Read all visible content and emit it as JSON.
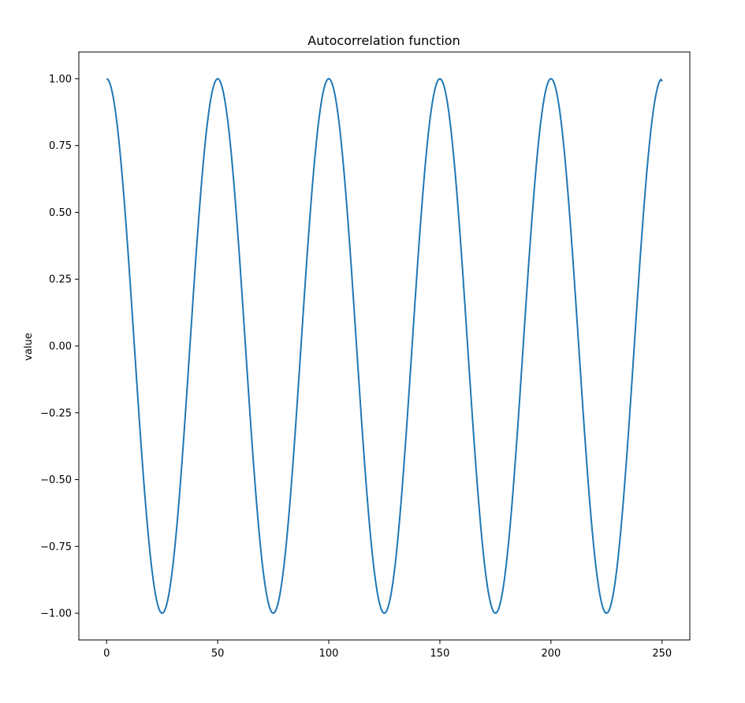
{
  "chart_data": {
    "type": "line",
    "title": "Autocorrelation function",
    "xlabel": "",
    "ylabel": "value",
    "xlim": [
      -12.5,
      262.5
    ],
    "ylim": [
      -1.1,
      1.1
    ],
    "xticks": [
      0,
      50,
      100,
      150,
      200,
      250
    ],
    "xtick_labels": [
      "0",
      "50",
      "100",
      "150",
      "200",
      "250"
    ],
    "yticks": [
      1.0,
      0.75,
      0.5,
      0.25,
      0.0,
      -0.25,
      -0.5,
      -0.75,
      -1.0
    ],
    "ytick_labels": [
      "1.00",
      "0.75",
      "0.50",
      "0.25",
      "0.00",
      "−0.25",
      "−0.50",
      "−0.75",
      "−1.00"
    ],
    "grid": false,
    "series": [
      {
        "color": "#1f77b4",
        "period": 50,
        "x": [
          0,
          5,
          10,
          15,
          20,
          25,
          30,
          35,
          40,
          45,
          50,
          55,
          60,
          65,
          70,
          75,
          80,
          85,
          90,
          95,
          100,
          105,
          110,
          115,
          120,
          125,
          130,
          135,
          140,
          145,
          150,
          155,
          160,
          165,
          170,
          175,
          180,
          185,
          190,
          195,
          200,
          205,
          210,
          215,
          220,
          225,
          230,
          235,
          240,
          245,
          250
        ],
        "y": [
          1.0,
          0.81,
          0.31,
          -0.31,
          -0.81,
          -1.0,
          -0.81,
          -0.31,
          0.31,
          0.81,
          1.0,
          0.81,
          0.31,
          -0.31,
          -0.81,
          -1.0,
          -0.81,
          -0.31,
          0.31,
          0.81,
          1.0,
          0.81,
          0.31,
          -0.31,
          -0.81,
          -1.0,
          -0.81,
          -0.31,
          0.31,
          0.81,
          1.0,
          0.81,
          0.31,
          -0.31,
          -0.81,
          -1.0,
          -0.81,
          -0.31,
          0.31,
          0.81,
          1.0,
          0.81,
          0.31,
          -0.31,
          -0.81,
          -1.0,
          -0.81,
          -0.31,
          0.31,
          0.81,
          0.99
        ]
      }
    ]
  }
}
